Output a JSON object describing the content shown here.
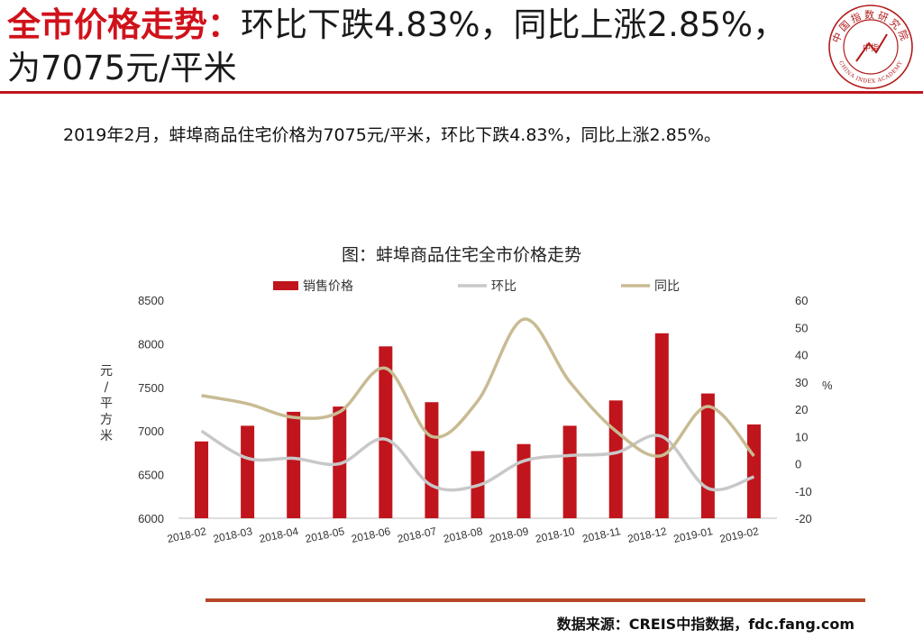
{
  "header": {
    "title_red": "全市价格走势：",
    "title_rest": "环比下跌4.83%，同比上涨2.85%，为7075元/平米"
  },
  "logo": {
    "icon": "china-index-academy-seal",
    "ring_text": "中国指数研究院",
    "en_text": "CHINA INDEX ACADEMY",
    "center_text": "中指"
  },
  "summary": "2019年2月，蚌埠商品住宅价格为7075元/平米，环比下跌4.83%，同比上涨2.85%。",
  "source": "数据来源：CREIS中指数据，fdc.fang.com",
  "colors": {
    "accent": "#c0151c",
    "bar": "#c0151c",
    "mom_line": "#c8c8c8",
    "yoy_line": "#c8bb93",
    "rule": "#b4462a"
  },
  "chart_data": {
    "type": "bar",
    "title": "图：蚌埠商品住宅全市价格走势",
    "categories": [
      "2018-02",
      "2018-03",
      "2018-04",
      "2018-05",
      "2018-06",
      "2018-07",
      "2018-08",
      "2018-09",
      "2018-10",
      "2018-11",
      "2018-12",
      "2019-01",
      "2019-02"
    ],
    "series": [
      {
        "name": "销售价格",
        "type": "bar",
        "axis": "left",
        "color": "#c0151c",
        "values": [
          6880,
          7060,
          7220,
          7280,
          7970,
          7330,
          6770,
          6850,
          7060,
          7350,
          8120,
          7430,
          7075
        ]
      },
      {
        "name": "环比",
        "type": "line",
        "axis": "right",
        "color": "#c8c8c8",
        "values": [
          12,
          2,
          2,
          0,
          9,
          -8,
          -8,
          1,
          3,
          4,
          10,
          -9,
          -4.83
        ]
      },
      {
        "name": "同比",
        "type": "line",
        "axis": "right",
        "color": "#c8bb93",
        "values": [
          25,
          22,
          17,
          19,
          35,
          10,
          23,
          53,
          30,
          12,
          3,
          21,
          2.85
        ]
      }
    ],
    "ylabel_left": "元/平方米",
    "ylabel_right": "%",
    "ylim_left": [
      6000,
      8500
    ],
    "yticks_left": [
      "6000",
      "6500",
      "7000",
      "7500",
      "8000",
      "8500"
    ],
    "ylim_right": [
      -20,
      60
    ],
    "yticks_right": [
      "-20",
      "-10",
      "0",
      "10",
      "20",
      "30",
      "40",
      "50",
      "60"
    ],
    "grid": false,
    "legend": "top"
  }
}
